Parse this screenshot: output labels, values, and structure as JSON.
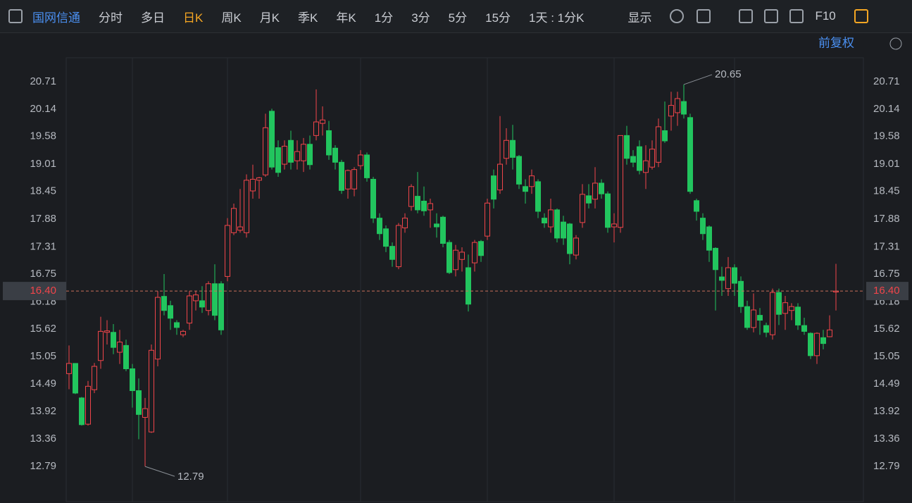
{
  "toolbar": {
    "stock_name": "国网信通",
    "periods": [
      "分时",
      "多日",
      "日K",
      "周K",
      "月K",
      "季K",
      "年K",
      "1分",
      "3分",
      "5分",
      "15分"
    ],
    "active_period": "日K",
    "interval": "1天 : 1分K",
    "display": "显示",
    "f10": "F10"
  },
  "adjust": "前复权",
  "chart_data": {
    "type": "candlestick",
    "up_color": "#f0454a",
    "down_color": "#22c55e",
    "ylim": [
      12.27,
      21.2
    ],
    "yticks": [
      12.79,
      13.36,
      13.92,
      14.49,
      15.05,
      15.62,
      16.18,
      16.75,
      17.31,
      17.88,
      18.45,
      19.01,
      19.58,
      20.14,
      20.71
    ],
    "last_price": {
      "value": 16.4,
      "label": "16.40"
    },
    "high_label": 20.65,
    "low_label": 12.79,
    "candles": [
      [
        14.7,
        15.28,
        14.38,
        14.91
      ],
      [
        14.91,
        14.91,
        14.28,
        14.3
      ],
      [
        14.2,
        14.22,
        13.63,
        13.65
      ],
      [
        13.66,
        14.55,
        13.63,
        14.44
      ],
      [
        14.37,
        14.92,
        14.3,
        14.85
      ],
      [
        14.97,
        15.87,
        14.8,
        15.57
      ],
      [
        15.55,
        15.8,
        15.3,
        15.58
      ],
      [
        15.55,
        15.72,
        15.1,
        15.24
      ],
      [
        15.14,
        15.6,
        14.9,
        15.35
      ],
      [
        15.28,
        15.4,
        14.75,
        14.8
      ],
      [
        14.8,
        14.9,
        14.0,
        14.35
      ],
      [
        14.35,
        14.6,
        13.35,
        13.86
      ],
      [
        13.8,
        14.2,
        12.79,
        13.98
      ],
      [
        13.5,
        15.3,
        13.48,
        15.18
      ],
      [
        15.0,
        16.4,
        14.85,
        16.27
      ],
      [
        16.29,
        16.75,
        15.9,
        16.0
      ],
      [
        16.1,
        16.2,
        15.6,
        15.84
      ],
      [
        15.75,
        15.8,
        15.5,
        15.65
      ],
      [
        15.5,
        15.6,
        15.45,
        15.57
      ],
      [
        15.74,
        16.4,
        15.6,
        16.3
      ],
      [
        16.2,
        16.4,
        16.0,
        16.32
      ],
      [
        16.2,
        16.5,
        15.95,
        16.07
      ],
      [
        16.0,
        16.6,
        15.9,
        16.55
      ],
      [
        16.55,
        16.95,
        15.8,
        15.9
      ],
      [
        16.55,
        16.6,
        15.5,
        15.6
      ],
      [
        16.7,
        17.9,
        16.6,
        17.75
      ],
      [
        17.6,
        18.2,
        17.55,
        18.1
      ],
      [
        17.65,
        18.5,
        17.6,
        17.72
      ],
      [
        17.6,
        18.8,
        17.5,
        18.68
      ],
      [
        18.46,
        19.0,
        18.3,
        18.7
      ],
      [
        18.68,
        18.75,
        18.3,
        18.73
      ],
      [
        18.79,
        20.05,
        18.75,
        19.76
      ],
      [
        20.1,
        20.15,
        18.9,
        18.95
      ],
      [
        19.35,
        19.5,
        18.75,
        18.84
      ],
      [
        19.01,
        19.5,
        18.9,
        19.38
      ],
      [
        19.5,
        19.7,
        18.9,
        19.05
      ],
      [
        19.08,
        19.5,
        18.9,
        19.27
      ],
      [
        19.08,
        19.55,
        18.85,
        19.42
      ],
      [
        19.42,
        19.6,
        18.9,
        19.0
      ],
      [
        19.6,
        20.55,
        19.5,
        19.88
      ],
      [
        19.85,
        20.2,
        19.6,
        19.92
      ],
      [
        19.7,
        19.9,
        19.1,
        19.2
      ],
      [
        19.34,
        19.4,
        18.9,
        19.05
      ],
      [
        19.05,
        19.1,
        18.4,
        18.47
      ],
      [
        18.5,
        18.9,
        18.3,
        18.88
      ],
      [
        18.5,
        18.95,
        18.35,
        18.9
      ],
      [
        18.98,
        19.3,
        18.9,
        19.2
      ],
      [
        19.2,
        19.25,
        18.65,
        18.73
      ],
      [
        18.7,
        18.75,
        17.8,
        17.9
      ],
      [
        17.9,
        18.0,
        17.45,
        17.58
      ],
      [
        17.68,
        17.75,
        17.2,
        17.32
      ],
      [
        17.32,
        17.4,
        16.9,
        17.05
      ],
      [
        16.9,
        17.8,
        16.85,
        17.75
      ],
      [
        17.7,
        18.0,
        17.6,
        17.9
      ],
      [
        18.14,
        18.6,
        18.05,
        18.55
      ],
      [
        18.35,
        18.85,
        18.0,
        18.07
      ],
      [
        18.25,
        18.55,
        17.95,
        18.05
      ],
      [
        18.07,
        18.3,
        17.7,
        18.2
      ],
      [
        17.78,
        18.0,
        17.5,
        17.72
      ],
      [
        17.92,
        17.95,
        17.3,
        17.38
      ],
      [
        17.4,
        17.45,
        16.75,
        16.78
      ],
      [
        16.84,
        17.35,
        16.7,
        17.24
      ],
      [
        17.05,
        17.3,
        16.8,
        17.2
      ],
      [
        16.88,
        17.15,
        15.98,
        16.13
      ],
      [
        16.98,
        17.45,
        16.8,
        17.4
      ],
      [
        17.42,
        17.45,
        17.0,
        17.13
      ],
      [
        17.53,
        18.3,
        17.45,
        18.21
      ],
      [
        18.77,
        18.9,
        18.1,
        18.29
      ],
      [
        18.48,
        20.0,
        18.4,
        19.01
      ],
      [
        19.13,
        19.75,
        19.0,
        19.5
      ],
      [
        19.5,
        19.82,
        18.9,
        19.15
      ],
      [
        19.17,
        19.2,
        18.5,
        18.6
      ],
      [
        18.55,
        18.7,
        18.2,
        18.45
      ],
      [
        18.55,
        18.9,
        18.4,
        18.77
      ],
      [
        18.65,
        18.7,
        17.9,
        18.04
      ],
      [
        17.9,
        18.0,
        17.7,
        17.8
      ],
      [
        17.72,
        18.3,
        17.6,
        18.07
      ],
      [
        18.07,
        18.1,
        17.4,
        17.49
      ],
      [
        17.82,
        17.95,
        17.35,
        17.49
      ],
      [
        17.78,
        17.8,
        16.95,
        17.17
      ],
      [
        17.14,
        17.55,
        17.05,
        17.49
      ],
      [
        17.81,
        18.6,
        17.7,
        18.39
      ],
      [
        18.36,
        18.6,
        18.1,
        18.21
      ],
      [
        18.29,
        18.95,
        18.1,
        18.62
      ],
      [
        18.62,
        18.7,
        18.3,
        18.4
      ],
      [
        18.4,
        18.45,
        17.6,
        17.71
      ],
      [
        17.72,
        18.0,
        17.4,
        17.78
      ],
      [
        17.71,
        19.6,
        17.6,
        19.6
      ],
      [
        19.6,
        19.8,
        19.0,
        19.13
      ],
      [
        19.17,
        19.3,
        18.95,
        19.05
      ],
      [
        19.37,
        19.5,
        18.8,
        18.88
      ],
      [
        18.84,
        19.4,
        18.5,
        19.08
      ],
      [
        18.95,
        19.5,
        18.9,
        19.32
      ],
      [
        19.05,
        19.95,
        18.95,
        19.78
      ],
      [
        19.7,
        20.3,
        19.45,
        19.49
      ],
      [
        20.0,
        20.5,
        19.7,
        20.22
      ],
      [
        20.07,
        20.5,
        19.8,
        20.36
      ],
      [
        20.3,
        20.65,
        19.95,
        20.04
      ],
      [
        19.97,
        20.05,
        18.4,
        18.45
      ],
      [
        18.26,
        18.3,
        17.85,
        18.04
      ],
      [
        17.9,
        18.0,
        17.45,
        17.58
      ],
      [
        17.72,
        17.75,
        17.0,
        17.24
      ],
      [
        17.28,
        17.3,
        16.0,
        16.84
      ],
      [
        16.69,
        16.9,
        16.3,
        16.62
      ],
      [
        16.45,
        17.1,
        16.3,
        16.88
      ],
      [
        16.88,
        16.95,
        16.3,
        16.56
      ],
      [
        16.6,
        16.7,
        15.95,
        16.08
      ],
      [
        16.08,
        16.2,
        15.6,
        15.65
      ],
      [
        15.65,
        16.35,
        15.55,
        16.01
      ],
      [
        15.9,
        16.05,
        15.5,
        15.8
      ],
      [
        15.69,
        15.75,
        15.45,
        15.55
      ],
      [
        15.5,
        16.45,
        15.4,
        16.37
      ],
      [
        16.37,
        16.45,
        15.7,
        15.92
      ],
      [
        15.94,
        16.3,
        15.6,
        16.16
      ],
      [
        16.0,
        16.15,
        15.8,
        16.08
      ],
      [
        16.07,
        16.15,
        15.6,
        15.7
      ],
      [
        15.69,
        15.85,
        15.5,
        15.57
      ],
      [
        15.53,
        15.55,
        15.0,
        15.07
      ],
      [
        15.07,
        15.55,
        14.9,
        15.53
      ],
      [
        15.44,
        15.6,
        15.2,
        15.32
      ],
      [
        15.46,
        15.9,
        15.45,
        15.6
      ],
      [
        16.38,
        16.96,
        16.0,
        16.4
      ]
    ]
  }
}
